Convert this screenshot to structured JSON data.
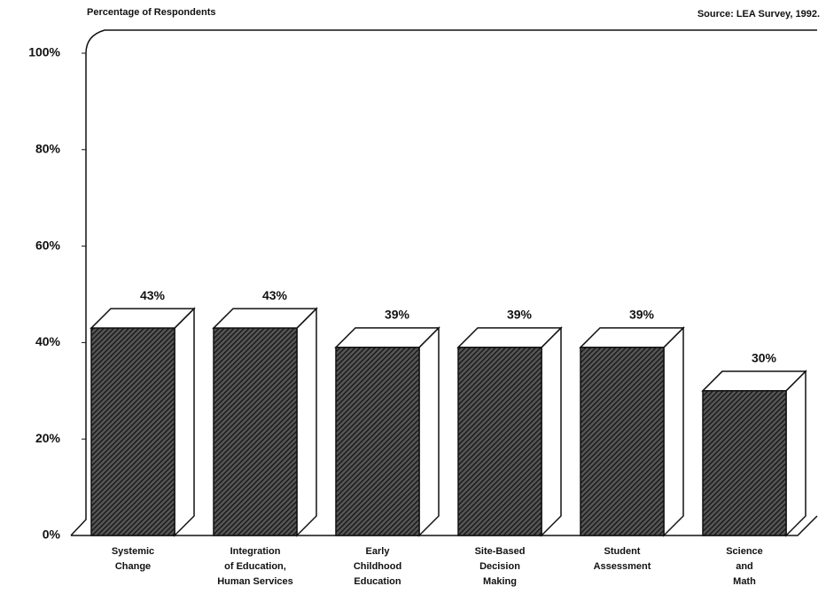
{
  "chart_data": {
    "type": "bar3d",
    "title": "Percentage of Respondents",
    "source": "Source:  LEA Survey, 1992.",
    "categories": [
      [
        "Systemic",
        "Change"
      ],
      [
        "Integration",
        "of Education,",
        "Human Services"
      ],
      [
        "Early",
        "Childhood",
        "Education"
      ],
      [
        "Site-Based",
        "Decision",
        "Making"
      ],
      [
        "Student",
        "Assessment"
      ],
      [
        "Science",
        "and",
        "Math"
      ]
    ],
    "values": [
      43,
      43,
      39,
      39,
      39,
      30
    ],
    "value_labels": [
      "43%",
      "43%",
      "39%",
      "39%",
      "39%",
      "30%"
    ],
    "color": "#222222",
    "ylim": [
      0,
      100
    ],
    "yticks": [
      {
        "value": 0,
        "label": "0%"
      },
      {
        "value": 20,
        "label": "20%"
      },
      {
        "value": 40,
        "label": "40%"
      },
      {
        "value": 60,
        "label": "60%"
      },
      {
        "value": 80,
        "label": "80%"
      },
      {
        "value": 100,
        "label": "100%"
      }
    ]
  }
}
